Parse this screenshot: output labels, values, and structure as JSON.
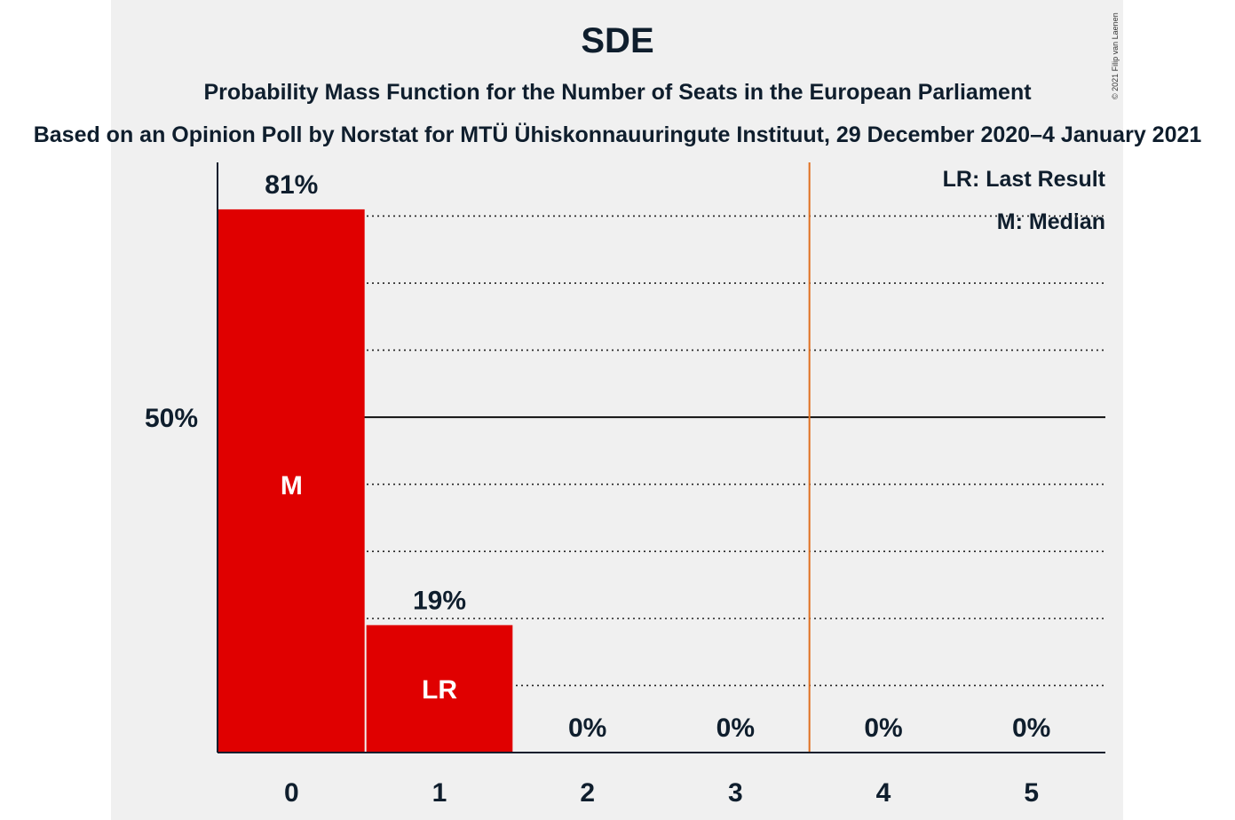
{
  "chart_data": {
    "type": "bar",
    "title": "SDE",
    "subtitle": "Probability Mass Function for the Number of Seats in the European Parliament",
    "subtitle2": "Based on an Opinion Poll by Norstat for MTÜ Ühiskonnauuringute Instituut, 29 December 2020–4 January 2021",
    "copyright": "© 2021 Filip van Laenen",
    "categories": [
      "0",
      "1",
      "2",
      "3",
      "4",
      "5"
    ],
    "values": [
      81,
      19,
      0,
      0,
      0,
      0
    ],
    "value_labels": [
      "81%",
      "19%",
      "0%",
      "0%",
      "0%",
      "0%"
    ],
    "bar_markers": [
      "M",
      "LR",
      "",
      "",
      "",
      ""
    ],
    "ylim": [
      0,
      88
    ],
    "y_ticks": [
      {
        "value": 50,
        "label": "50%"
      }
    ],
    "gridlines": [
      10,
      20,
      30,
      40,
      60,
      70,
      80
    ],
    "major_gridline": 50,
    "threshold_line_between": [
      3,
      4
    ],
    "legend": {
      "placement": "top-right",
      "items": [
        "LR: Last Result",
        "M: Median"
      ]
    },
    "colors": {
      "bar": "#e00000",
      "threshold": "#e07020",
      "text": "#0f1e2d",
      "panel": "#f0f0f0"
    }
  }
}
